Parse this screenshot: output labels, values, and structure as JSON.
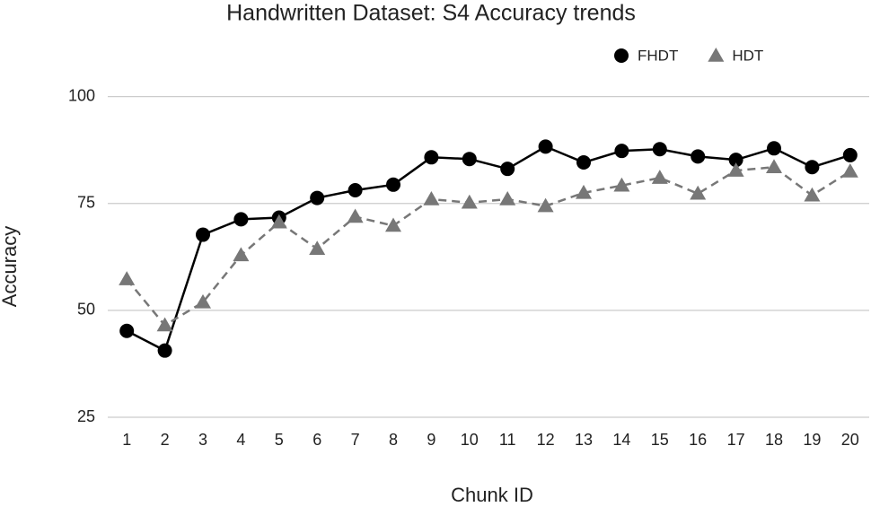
{
  "chart_data": {
    "type": "line",
    "title": "Handwritten Dataset: S4 Accuracy trends",
    "x_label": "Chunk ID",
    "y_label": "Accuracy",
    "categories": [
      1,
      2,
      3,
      4,
      5,
      6,
      7,
      8,
      9,
      10,
      11,
      12,
      13,
      14,
      15,
      16,
      17,
      18,
      19,
      20
    ],
    "series": [
      {
        "name": "FHDT",
        "color": "#000000",
        "marker": "circle",
        "dashed": false,
        "values": [
          45.2,
          40.6,
          67.7,
          71.3,
          71.7,
          76.3,
          78.1,
          79.4,
          85.8,
          85.4,
          83.1,
          88.3,
          84.6,
          87.3,
          87.7,
          86.0,
          85.2,
          87.9,
          83.5,
          86.3
        ]
      },
      {
        "name": "HDT",
        "color": "#777777",
        "marker": "triangle",
        "dashed": true,
        "values": [
          57.3,
          46.5,
          51.9,
          62.9,
          70.6,
          64.4,
          71.9,
          69.8,
          76.0,
          75.2,
          76.0,
          74.4,
          77.5,
          79.2,
          81.0,
          77.3,
          82.7,
          83.5,
          76.9,
          82.5
        ]
      }
    ],
    "ylim": [
      25,
      110
    ],
    "yticks": [
      25,
      50,
      75,
      100
    ],
    "grid": true,
    "legend": "top-right"
  }
}
